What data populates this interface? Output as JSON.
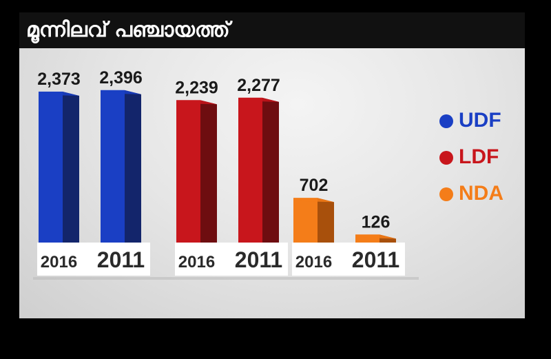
{
  "title": "മൂന്നിലവ് പഞ്ചായത്ത്",
  "legend": [
    {
      "label": "UDF",
      "color": "#1a3fc4"
    },
    {
      "label": "LDF",
      "color": "#c8161c"
    },
    {
      "label": "NDA",
      "color": "#f47d19"
    }
  ],
  "chart_data": {
    "type": "bar",
    "title": "മൂന്നിലവ് പഞ്ചായത്ത്",
    "xlabel": "",
    "ylabel": "",
    "categories": [
      "2016",
      "2011"
    ],
    "series": [
      {
        "name": "UDF",
        "color": "#1a3fc4",
        "shade": "#13256b",
        "values": [
          2373,
          2396
        ],
        "labels": [
          "2,373",
          "2,396"
        ]
      },
      {
        "name": "LDF",
        "color": "#c8161c",
        "shade": "#6e0d10",
        "values": [
          2239,
          2277
        ],
        "labels": [
          "2,239",
          "2,277"
        ]
      },
      {
        "name": "NDA",
        "color": "#f47d19",
        "shade": "#a8500c",
        "values": [
          702,
          126
        ],
        "labels": [
          "702",
          "126"
        ]
      }
    ],
    "ylim": [
      0,
      2600
    ],
    "grid": false,
    "legend_position": "right"
  }
}
